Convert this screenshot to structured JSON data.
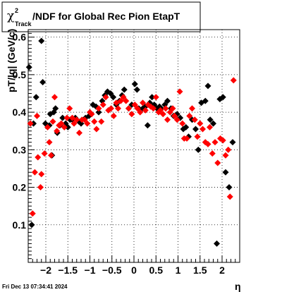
{
  "chart_data": {
    "type": "scatter",
    "title": {
      "symbol": "χ",
      "superscript": "2",
      "subscript": "Track",
      "text": "/NDF for Global Rec Pion EtapT"
    },
    "xlabel": "η",
    "ylabel": "pT/|q| (GeV/c)",
    "xlim": [
      -2.4,
      2.4
    ],
    "ylim": [
      0,
      0.62
    ],
    "xticks": [
      -2,
      -1.5,
      -1,
      -0.5,
      0,
      0.5,
      1,
      1.5,
      2
    ],
    "xtick_labels": [
      "−2",
      "−1.5",
      "−1",
      "−0.5",
      "0",
      "0.5",
      "1",
      "1.5",
      "2"
    ],
    "yticks": [
      0.1,
      0.2,
      0.3,
      0.4,
      0.5,
      0.6
    ],
    "ytick_labels": [
      "0.1",
      "0.2",
      "0.3",
      "0.4",
      "0.5",
      "0.6"
    ],
    "grid": true,
    "footer": "Fri Dec 13 07:34:41 2024",
    "series": [
      {
        "color": "#000000",
        "points": [
          [
            -2.38,
            0.52
          ],
          [
            -2.32,
            0.1
          ],
          [
            -2.28,
            0.37
          ],
          [
            -2.22,
            0.44
          ],
          [
            -2.1,
            0.59
          ],
          [
            -2.07,
            0.48
          ],
          [
            -2.01,
            0.37
          ],
          [
            -1.92,
            0.365
          ],
          [
            -1.9,
            0.395
          ],
          [
            -1.86,
            0.285
          ],
          [
            -1.82,
            0.4
          ],
          [
            -1.78,
            0.41
          ],
          [
            -1.74,
            0.345
          ],
          [
            -1.68,
            0.365
          ],
          [
            -1.62,
            0.385
          ],
          [
            -1.55,
            0.37
          ],
          [
            -1.5,
            0.36
          ],
          [
            -1.45,
            0.38
          ],
          [
            -1.4,
            0.38
          ],
          [
            -1.33,
            0.385
          ],
          [
            -1.25,
            0.375
          ],
          [
            -1.2,
            0.37
          ],
          [
            -1.1,
            0.385
          ],
          [
            -1.02,
            0.39
          ],
          [
            -0.97,
            0.395
          ],
          [
            -0.93,
            0.42
          ],
          [
            -0.86,
            0.415
          ],
          [
            -0.8,
            0.4
          ],
          [
            -0.72,
            0.43
          ],
          [
            -0.66,
            0.445
          ],
          [
            -0.6,
            0.455
          ],
          [
            -0.53,
            0.45
          ],
          [
            -0.47,
            0.44
          ],
          [
            -0.4,
            0.42
          ],
          [
            -0.33,
            0.43
          ],
          [
            -0.27,
            0.445
          ],
          [
            -0.22,
            0.46
          ],
          [
            -0.12,
            0.41
          ],
          [
            -0.05,
            0.42
          ],
          [
            0.02,
            0.475
          ],
          [
            0.07,
            0.46
          ],
          [
            0.11,
            0.41
          ],
          [
            0.2,
            0.41
          ],
          [
            0.26,
            0.415
          ],
          [
            0.31,
            0.365
          ],
          [
            0.36,
            0.425
          ],
          [
            0.41,
            0.44
          ],
          [
            0.46,
            0.42
          ],
          [
            0.52,
            0.41
          ],
          [
            0.58,
            0.415
          ],
          [
            0.62,
            0.41
          ],
          [
            0.7,
            0.42
          ],
          [
            0.76,
            0.43
          ],
          [
            0.84,
            0.41
          ],
          [
            0.9,
            0.39
          ],
          [
            0.98,
            0.395
          ],
          [
            1.05,
            0.385
          ],
          [
            1.12,
            0.355
          ],
          [
            1.18,
            0.36
          ],
          [
            1.24,
            0.335
          ],
          [
            1.32,
            0.38
          ],
          [
            1.4,
            0.355
          ],
          [
            1.46,
            0.3
          ],
          [
            1.53,
            0.425
          ],
          [
            1.62,
            0.43
          ],
          [
            1.68,
            0.47
          ],
          [
            1.73,
            0.38
          ],
          [
            1.8,
            0.37
          ],
          [
            1.88,
            0.05
          ],
          [
            1.95,
            0.435
          ],
          [
            2.02,
            0.44
          ],
          [
            2.08,
            0.24
          ],
          [
            2.16,
            0.2
          ],
          [
            2.24,
            0.32
          ]
        ]
      },
      {
        "color": "#ff0000",
        "points": [
          [
            -2.35,
            0.37
          ],
          [
            -2.3,
            0.13
          ],
          [
            -2.25,
            0.24
          ],
          [
            -2.2,
            0.39
          ],
          [
            -2.18,
            0.28
          ],
          [
            -2.12,
            0.2
          ],
          [
            -2.1,
            0.235
          ],
          [
            -2.03,
            0.29
          ],
          [
            -1.96,
            0.36
          ],
          [
            -1.92,
            0.32
          ],
          [
            -1.88,
            0.285
          ],
          [
            -1.84,
            0.375
          ],
          [
            -1.8,
            0.44
          ],
          [
            -1.75,
            0.35
          ],
          [
            -1.7,
            0.365
          ],
          [
            -1.65,
            0.37
          ],
          [
            -1.58,
            0.36
          ],
          [
            -1.52,
            0.385
          ],
          [
            -1.46,
            0.41
          ],
          [
            -1.4,
            0.385
          ],
          [
            -1.36,
            0.37
          ],
          [
            -1.3,
            0.38
          ],
          [
            -1.24,
            0.345
          ],
          [
            -1.18,
            0.38
          ],
          [
            -1.12,
            0.38
          ],
          [
            -1.06,
            0.37
          ],
          [
            -1.0,
            0.4
          ],
          [
            -0.96,
            0.395
          ],
          [
            -0.9,
            0.375
          ],
          [
            -0.85,
            0.355
          ],
          [
            -0.8,
            0.41
          ],
          [
            -0.74,
            0.375
          ],
          [
            -0.7,
            0.42
          ],
          [
            -0.64,
            0.44
          ],
          [
            -0.58,
            0.405
          ],
          [
            -0.52,
            0.41
          ],
          [
            -0.46,
            0.39
          ],
          [
            -0.4,
            0.425
          ],
          [
            -0.36,
            0.41
          ],
          [
            -0.3,
            0.43
          ],
          [
            -0.24,
            0.44
          ],
          [
            -0.18,
            0.43
          ],
          [
            -0.12,
            0.41
          ],
          [
            -0.05,
            0.395
          ],
          [
            0.02,
            0.42
          ],
          [
            0.08,
            0.41
          ],
          [
            0.14,
            0.4
          ],
          [
            0.2,
            0.425
          ],
          [
            0.26,
            0.405
          ],
          [
            0.32,
            0.42
          ],
          [
            0.38,
            0.415
          ],
          [
            0.44,
            0.41
          ],
          [
            0.5,
            0.44
          ],
          [
            0.56,
            0.4
          ],
          [
            0.6,
            0.405
          ],
          [
            0.66,
            0.395
          ],
          [
            0.72,
            0.41
          ],
          [
            0.76,
            0.38
          ],
          [
            0.82,
            0.4
          ],
          [
            0.88,
            0.41
          ],
          [
            0.92,
            0.39
          ],
          [
            0.98,
            0.38
          ],
          [
            1.04,
            0.455
          ],
          [
            1.1,
            0.37
          ],
          [
            1.14,
            0.33
          ],
          [
            1.2,
            0.33
          ],
          [
            1.26,
            0.39
          ],
          [
            1.32,
            0.41
          ],
          [
            1.38,
            0.38
          ],
          [
            1.44,
            0.335
          ],
          [
            1.5,
            0.37
          ],
          [
            1.56,
            0.355
          ],
          [
            1.62,
            0.32
          ],
          [
            1.68,
            0.315
          ],
          [
            1.72,
            0.36
          ],
          [
            1.78,
            0.29
          ],
          [
            1.84,
            0.32
          ],
          [
            1.9,
            0.265
          ],
          [
            1.96,
            0.33
          ],
          [
            2.02,
            0.325
          ],
          [
            2.08,
            0.285
          ],
          [
            2.14,
            0.3
          ],
          [
            2.18,
            0.175
          ],
          [
            2.26,
            0.485
          ]
        ]
      }
    ]
  }
}
